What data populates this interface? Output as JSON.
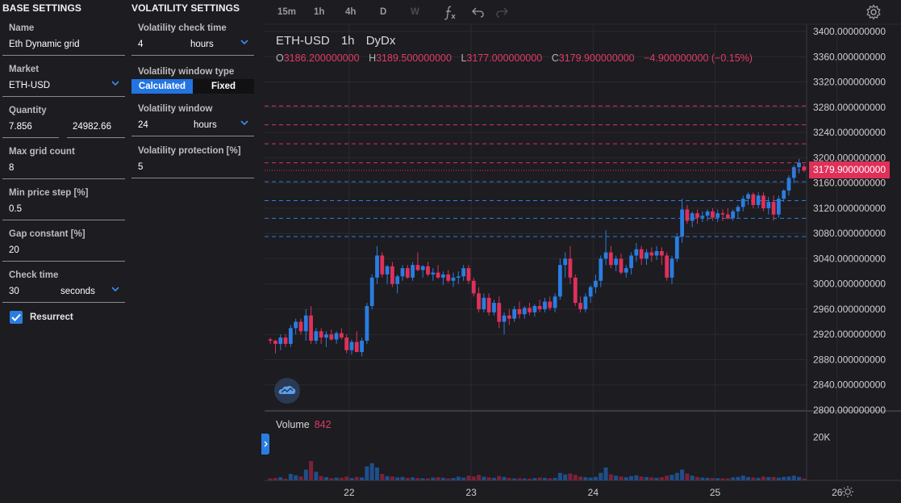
{
  "base_settings": {
    "title": "BASE SETTINGS",
    "name_label": "Name",
    "name_value": "Eth Dynamic grid",
    "market_label": "Market",
    "market_value": "ETH-USD",
    "quantity_label": "Quantity",
    "quantity_value": "7.856",
    "quantity_usd": "24982.66",
    "max_grid_label": "Max grid count",
    "max_grid_value": "8",
    "min_step_label": "Min price step [%]",
    "min_step_value": "0.5",
    "gap_label": "Gap constant [%]",
    "gap_value": "20",
    "check_label": "Check time",
    "check_value": "30",
    "check_unit": "seconds",
    "resurrect_label": "Resurrect",
    "resurrect_checked": true
  },
  "volatility_settings": {
    "title": "VOLATILITY SETTINGS",
    "check_label": "Volatility check time",
    "check_value": "4",
    "check_unit": "hours",
    "window_type_label": "Volatility window type",
    "window_type_options": [
      "Calculated",
      "Fixed"
    ],
    "window_type_selected": "Calculated",
    "window_label": "Volatility window",
    "window_value": "24",
    "window_unit": "hours",
    "protection_label": "Volatility protection [%]",
    "protection_value": "5"
  },
  "toolbar": {
    "intervals": [
      "15m",
      "1h",
      "4h",
      "D",
      "W"
    ],
    "disabled_interval": "W",
    "indicator_icon": "function-icon",
    "undo_icon": "undo-icon",
    "redo_icon": "redo-icon",
    "settings_icon": "gear-icon"
  },
  "chart_legend": {
    "symbol": "ETH-USD",
    "interval": "1h",
    "exchange": "DyDx",
    "o_label": "O",
    "o_value": "3186.200000000",
    "h_label": "H",
    "h_value": "3189.500000000",
    "l_label": "L",
    "l_value": "3177.000000000",
    "c_label": "C",
    "c_value": "3179.900000000",
    "change": "−4.900000000 (−0.15%)",
    "last_price_tag": "3179.900000000"
  },
  "volume_legend": {
    "label": "Volume",
    "value": "842"
  },
  "colors": {
    "up": "#2a7de1",
    "down": "#e0305a",
    "background": "#1c1c21",
    "grid": "#2a2a30",
    "axis_text": "#d0d0d0"
  },
  "chart_data": {
    "type": "candlestick",
    "y_axis_labels": [
      "3400.000000000",
      "3360.000000000",
      "3320.000000000",
      "3280.000000000",
      "3240.000000000",
      "3200.000000000",
      "3160.000000000",
      "3120.000000000",
      "3080.000000000",
      "3040.000000000",
      "3000.000000000",
      "2960.000000000",
      "2920.000000000",
      "2880.000000000",
      "2840.000000000",
      "2800.000000000"
    ],
    "ylim": [
      2800,
      3400
    ],
    "y_ticks": [
      3400,
      3360,
      3320,
      3280,
      3240,
      3200,
      3160,
      3120,
      3080,
      3040,
      3000,
      2960,
      2920,
      2880,
      2840,
      2800
    ],
    "x_tick_labels": [
      "22",
      "23",
      "24",
      "25",
      "26"
    ],
    "x_ticks": [
      16,
      40,
      64,
      88,
      112
    ],
    "volume_axis_label": "20K",
    "volume_axis_value": 20000,
    "volume_max": 30000,
    "grid_lines_sell": [
      3282,
      3252,
      3222,
      3192
    ],
    "grid_lines_buy": [
      3162,
      3132,
      3104,
      3075
    ],
    "candles": [
      [
        2912,
        2915,
        2905,
        2910,
        900
      ],
      [
        2910,
        2912,
        2890,
        2905,
        1100
      ],
      [
        2905,
        2920,
        2895,
        2915,
        1500
      ],
      [
        2915,
        2920,
        2900,
        2905,
        800
      ],
      [
        2905,
        2935,
        2900,
        2930,
        3000
      ],
      [
        2930,
        2945,
        2920,
        2940,
        2400
      ],
      [
        2940,
        2945,
        2920,
        2925,
        1800
      ],
      [
        2925,
        2960,
        2910,
        2950,
        5000
      ],
      [
        2950,
        2965,
        2905,
        2910,
        9000
      ],
      [
        2910,
        2930,
        2905,
        2925,
        4000
      ],
      [
        2925,
        2930,
        2905,
        2915,
        2000
      ],
      [
        2915,
        2925,
        2900,
        2920,
        1500
      ],
      [
        2920,
        2928,
        2910,
        2912,
        1000
      ],
      [
        2912,
        2925,
        2905,
        2922,
        1300
      ],
      [
        2922,
        2930,
        2912,
        2915,
        1200
      ],
      [
        2915,
        2920,
        2890,
        2895,
        1800
      ],
      [
        2895,
        2912,
        2888,
        2908,
        1100
      ],
      [
        2908,
        2925,
        2895,
        2892,
        1600
      ],
      [
        2892,
        2915,
        2885,
        2910,
        1400
      ],
      [
        2910,
        2970,
        2905,
        2965,
        6500
      ],
      [
        2965,
        3015,
        2960,
        3010,
        8000
      ],
      [
        3010,
        3060,
        3000,
        3045,
        6000
      ],
      [
        3045,
        3050,
        3010,
        3015,
        3000
      ],
      [
        3015,
        3030,
        3000,
        3028,
        2000
      ],
      [
        3028,
        3035,
        2995,
        3000,
        1800
      ],
      [
        3000,
        3015,
        2985,
        3012,
        1400
      ],
      [
        3012,
        3030,
        3005,
        3025,
        1600
      ],
      [
        3025,
        3030,
        3008,
        3010,
        1200
      ],
      [
        3010,
        3035,
        3005,
        3030,
        1400
      ],
      [
        3030,
        3050,
        3020,
        3022,
        1100
      ],
      [
        3022,
        3030,
        3010,
        3028,
        1000
      ],
      [
        3028,
        3035,
        3012,
        3015,
        900
      ],
      [
        3015,
        3025,
        3005,
        3018,
        1300
      ],
      [
        3018,
        3030,
        3008,
        3010,
        1500
      ],
      [
        3010,
        3020,
        2998,
        3015,
        1200
      ],
      [
        3015,
        3022,
        3002,
        3005,
        900
      ],
      [
        3005,
        3018,
        2995,
        3010,
        1100
      ],
      [
        3010,
        3020,
        3000,
        3012,
        1700
      ],
      [
        3012,
        3030,
        3005,
        3025,
        1300
      ],
      [
        3025,
        3030,
        3000,
        3005,
        2200
      ],
      [
        3005,
        3010,
        2980,
        2985,
        1800
      ],
      [
        2985,
        2995,
        2955,
        2960,
        2600
      ],
      [
        2960,
        2985,
        2955,
        2978,
        1700
      ],
      [
        2978,
        2985,
        2950,
        2955,
        1400
      ],
      [
        2955,
        2975,
        2950,
        2970,
        1200
      ],
      [
        2970,
        2980,
        2930,
        2940,
        2000
      ],
      [
        2940,
        2955,
        2920,
        2950,
        1600
      ],
      [
        2950,
        2960,
        2935,
        2945,
        1100
      ],
      [
        2945,
        2965,
        2940,
        2960,
        900
      ],
      [
        2960,
        2972,
        2945,
        2952,
        1000
      ],
      [
        2952,
        2965,
        2945,
        2962,
        900
      ],
      [
        2962,
        2970,
        2950,
        2955,
        800
      ],
      [
        2955,
        2968,
        2948,
        2965,
        1100
      ],
      [
        2965,
        2975,
        2955,
        2960,
        1300
      ],
      [
        2960,
        2978,
        2955,
        2972,
        1200
      ],
      [
        2972,
        2980,
        2958,
        2962,
        1000
      ],
      [
        2962,
        2985,
        2955,
        2980,
        1200
      ],
      [
        2980,
        3040,
        2975,
        3030,
        3500
      ],
      [
        3030,
        3050,
        3010,
        3040,
        2800
      ],
      [
        3040,
        3060,
        3000,
        3010,
        3200
      ],
      [
        3010,
        3015,
        2965,
        2970,
        2600
      ],
      [
        2970,
        2980,
        2955,
        2960,
        1800
      ],
      [
        2960,
        2985,
        2955,
        2980,
        1500
      ],
      [
        2980,
        2998,
        2970,
        2995,
        1300
      ],
      [
        2995,
        3015,
        2985,
        3005,
        1600
      ],
      [
        3005,
        3045,
        2995,
        3040,
        3500
      ],
      [
        3040,
        3085,
        3030,
        3050,
        6000
      ],
      [
        3050,
        3060,
        3025,
        3030,
        2800
      ],
      [
        3030,
        3045,
        3020,
        3040,
        2200
      ],
      [
        3040,
        3048,
        3015,
        3018,
        1800
      ],
      [
        3018,
        3030,
        3010,
        3025,
        1500
      ],
      [
        3025,
        3050,
        3015,
        3045,
        2000
      ],
      [
        3045,
        3065,
        3035,
        3055,
        2400
      ],
      [
        3055,
        3060,
        3030,
        3040,
        1800
      ],
      [
        3040,
        3055,
        3030,
        3050,
        1600
      ],
      [
        3050,
        3058,
        3035,
        3045,
        1400
      ],
      [
        3045,
        3060,
        3038,
        3052,
        1200
      ],
      [
        3052,
        3058,
        3030,
        3045,
        1500
      ],
      [
        3045,
        3050,
        3005,
        3010,
        2200
      ],
      [
        3010,
        3045,
        3000,
        3040,
        2600
      ],
      [
        3040,
        3080,
        3035,
        3075,
        3500
      ],
      [
        3075,
        3135,
        3065,
        3118,
        5000
      ],
      [
        3118,
        3125,
        3095,
        3100,
        3200
      ],
      [
        3100,
        3115,
        3090,
        3112,
        2200
      ],
      [
        3112,
        3118,
        3095,
        3105,
        1600
      ],
      [
        3105,
        3115,
        3098,
        3108,
        1300
      ],
      [
        3108,
        3118,
        3100,
        3115,
        1200
      ],
      [
        3115,
        3120,
        3100,
        3105,
        1100
      ],
      [
        3105,
        3118,
        3098,
        3112,
        1000
      ],
      [
        3112,
        3118,
        3100,
        3110,
        1000
      ],
      [
        3110,
        3120,
        3102,
        3104,
        900
      ],
      [
        3104,
        3118,
        3100,
        3115,
        1400
      ],
      [
        3115,
        3125,
        3105,
        3122,
        1600
      ],
      [
        3122,
        3140,
        3115,
        3135,
        2200
      ],
      [
        3135,
        3145,
        3125,
        3142,
        1500
      ],
      [
        3142,
        3145,
        3120,
        3125,
        1400
      ],
      [
        3125,
        3145,
        3120,
        3140,
        1200
      ],
      [
        3140,
        3145,
        3115,
        3120,
        1800
      ],
      [
        3120,
        3138,
        3110,
        3130,
        1500
      ],
      [
        3130,
        3140,
        3100,
        3110,
        1600
      ],
      [
        3110,
        3140,
        3105,
        3135,
        1300
      ],
      [
        3135,
        3150,
        3130,
        3148,
        1600
      ],
      [
        3148,
        3172,
        3140,
        3168,
        1800
      ],
      [
        3168,
        3188,
        3160,
        3185,
        2200
      ],
      [
        3185,
        3198,
        3175,
        3192,
        1600
      ],
      [
        3186,
        3190,
        3177,
        3180,
        842
      ]
    ]
  }
}
